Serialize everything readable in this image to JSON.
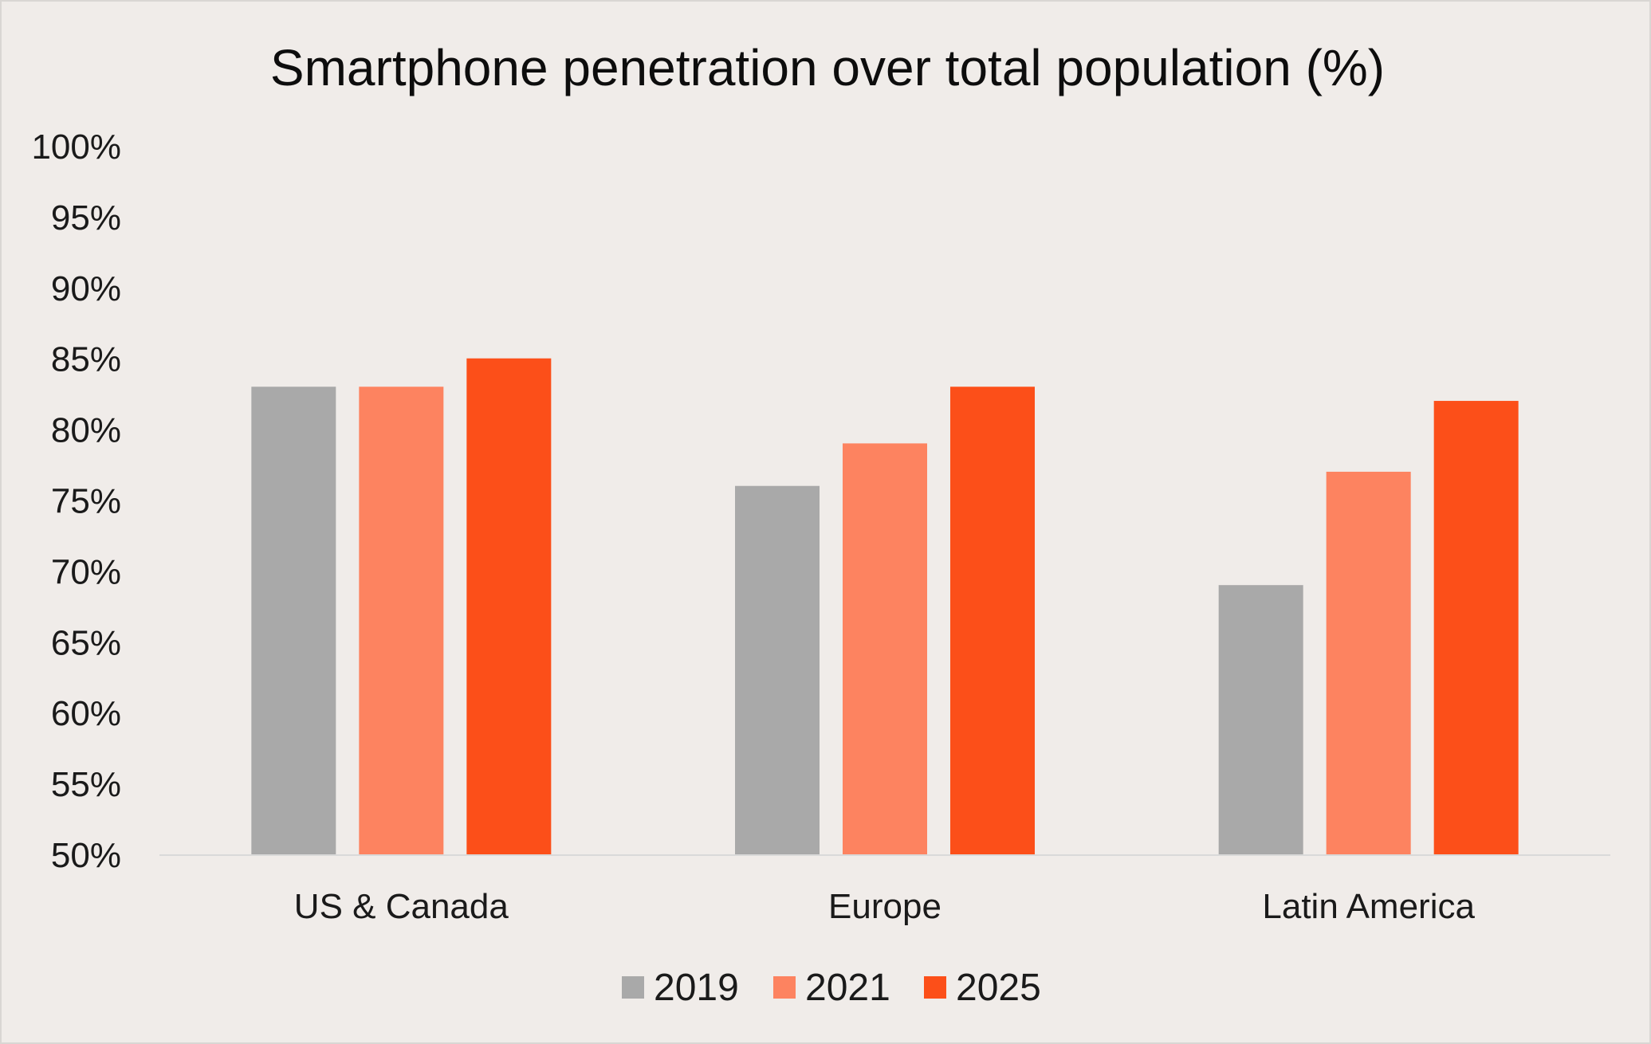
{
  "chart_data": {
    "type": "bar",
    "title": "Smartphone penetration over total population (%)",
    "xlabel": "",
    "ylabel": "",
    "categories": [
      "US & Canada",
      "Europe",
      "Latin America"
    ],
    "series": [
      {
        "name": "2019",
        "color": "#a9a9a9",
        "values": [
          83,
          76,
          69
        ]
      },
      {
        "name": "2021",
        "color": "#fd8360",
        "values": [
          83,
          79,
          77
        ]
      },
      {
        "name": "2025",
        "color": "#fc4f19",
        "values": [
          85,
          83,
          82
        ]
      }
    ],
    "ylim": [
      50,
      100
    ],
    "yticks": [
      50,
      55,
      60,
      65,
      70,
      75,
      80,
      85,
      90,
      95,
      100
    ],
    "ytick_labels": [
      "50%",
      "55%",
      "60%",
      "65%",
      "70%",
      "75%",
      "80%",
      "85%",
      "90%",
      "95%",
      "100%"
    ],
    "grid": false,
    "legend": "bottom-center",
    "background_color": "#f0ece9",
    "axis_color": "#d9d9d9"
  }
}
